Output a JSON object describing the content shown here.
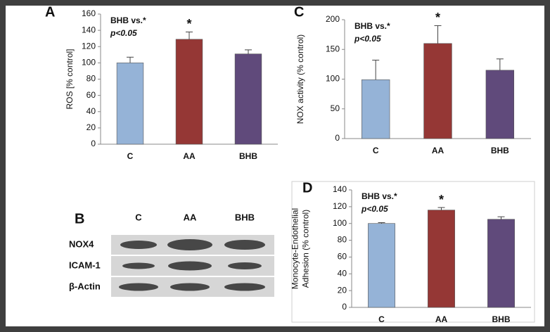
{
  "chart_data": [
    {
      "type": "bar",
      "label": "A",
      "ylabel": [
        "ROS [% control]"
      ],
      "categories": [
        "C",
        "AA",
        "BHB"
      ],
      "values": [
        100,
        129,
        111
      ],
      "errors": [
        7,
        9,
        5
      ],
      "colors": [
        "#95b3d7",
        "#953735",
        "#604a7b"
      ],
      "ylim": [
        0,
        160
      ],
      "yticks": [
        0,
        20,
        40,
        60,
        80,
        100,
        120,
        140,
        160
      ],
      "annotation": [
        "BHB vs.*",
        "p<0.05"
      ],
      "star": "*",
      "star_category": 1
    },
    {
      "type": "bar",
      "label": "C",
      "ylabel": [
        "NOX activity (% control)"
      ],
      "categories": [
        "C",
        "AA",
        "BHB"
      ],
      "values": [
        99,
        160,
        115
      ],
      "errors": [
        33,
        30,
        19
      ],
      "colors": [
        "#95b3d7",
        "#953735",
        "#604a7b"
      ],
      "ylim": [
        0,
        200
      ],
      "yticks": [
        0,
        50,
        100,
        150,
        200
      ],
      "annotation": [
        "BHB vs.*",
        "p<0.05"
      ],
      "star": "*",
      "star_category": 1
    },
    {
      "type": "bar",
      "label": "D",
      "ylabel": [
        "Monocyte-Endothelial",
        "Adhesion (% control)"
      ],
      "categories": [
        "C",
        "AA",
        "BHB"
      ],
      "values": [
        100,
        116,
        105
      ],
      "errors": [
        1,
        3,
        3
      ],
      "colors": [
        "#95b3d7",
        "#953735",
        "#604a7b"
      ],
      "ylim": [
        0,
        140
      ],
      "yticks": [
        0,
        20,
        40,
        60,
        80,
        100,
        120,
        140
      ],
      "annotation": [
        "BHB vs.*",
        "p<0.05"
      ],
      "star": "*",
      "star_category": 1
    }
  ],
  "blot": {
    "label": "B",
    "columns": [
      "C",
      "AA",
      "BHB"
    ],
    "rows": [
      "NOX4",
      "ICAM-1",
      "β-Actin"
    ]
  }
}
